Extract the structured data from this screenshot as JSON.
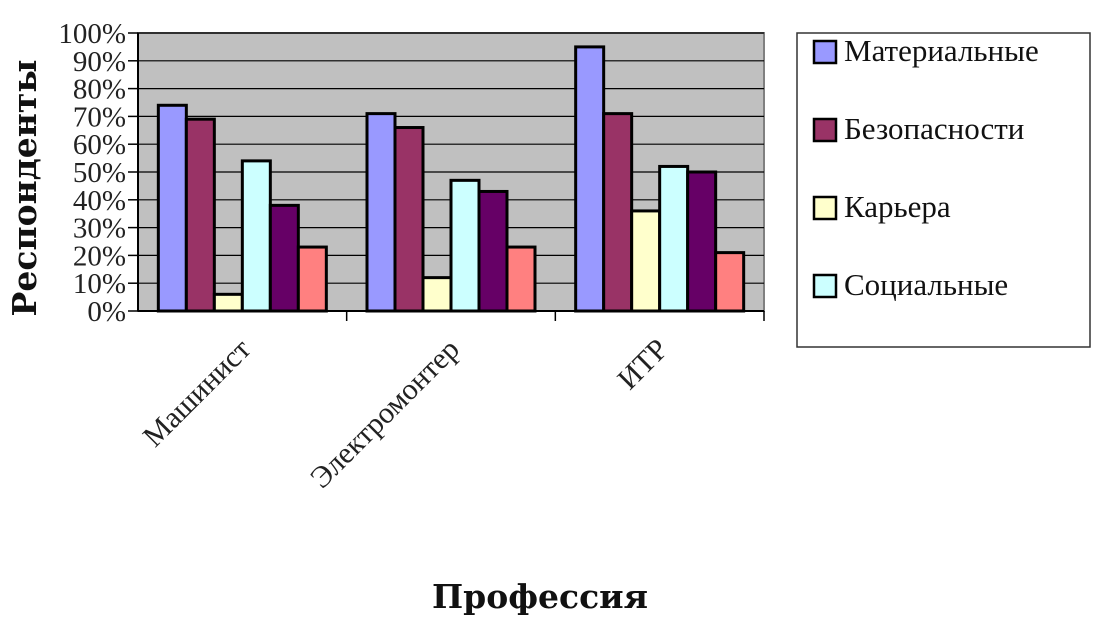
{
  "chart_data": {
    "type": "bar",
    "title": "",
    "xlabel": "Профессия",
    "ylabel": "Респонденты",
    "ylim": [
      0,
      100
    ],
    "y_ticks": [
      "0%",
      "10%",
      "20%",
      "30%",
      "40%",
      "50%",
      "60%",
      "70%",
      "80%",
      "90%",
      "100%"
    ],
    "grid": true,
    "legend_position": "right",
    "categories": [
      "Машинист",
      "Электромонтер",
      "ИТР"
    ],
    "series": [
      {
        "name": "Материальные",
        "color": "#9999FF",
        "values": [
          74,
          71,
          95
        ]
      },
      {
        "name": "Безопасности",
        "color": "#993366",
        "values": [
          69,
          66,
          71
        ]
      },
      {
        "name": "Карьера",
        "color": "#FFFFCC",
        "values": [
          6,
          12,
          36
        ]
      },
      {
        "name": "Социальные",
        "color": "#CCFFFF",
        "values": [
          54,
          47,
          52
        ]
      },
      {
        "name": "",
        "color": "#660066",
        "values": [
          38,
          43,
          50
        ]
      },
      {
        "name": "",
        "color": "#FF8080",
        "values": [
          23,
          23,
          21
        ]
      }
    ],
    "plot_background": "#C0C0C0"
  }
}
